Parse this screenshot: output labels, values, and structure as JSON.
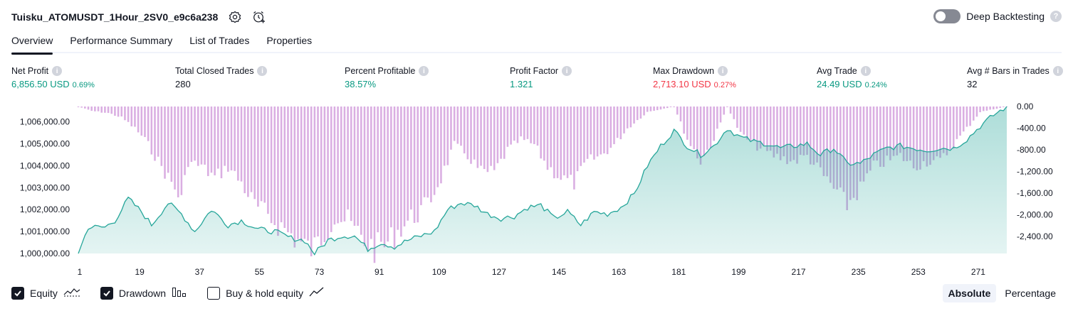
{
  "header": {
    "title": "Tuisku_ATOMUSDT_1Hour_2SV0_e9c6a238",
    "settings_icon": "gear-icon",
    "alert_icon": "alarm-clock-plus-icon"
  },
  "deep_backtesting": {
    "label": "Deep Backtesting",
    "enabled": false,
    "help_icon": "?"
  },
  "tabs": [
    {
      "label": "Overview",
      "active": true
    },
    {
      "label": "Performance Summary",
      "active": false
    },
    {
      "label": "List of Trades",
      "active": false
    },
    {
      "label": "Properties",
      "active": false
    }
  ],
  "stats": [
    {
      "label": "Net Profit",
      "value": "6,856.50 USD",
      "pct": "0.69%",
      "color": "#089981"
    },
    {
      "label": "Total Closed Trades",
      "value": "280",
      "pct": "",
      "color": "#131722"
    },
    {
      "label": "Percent Profitable",
      "value": "38.57%",
      "pct": "",
      "color": "#089981"
    },
    {
      "label": "Profit Factor",
      "value": "1.321",
      "pct": "",
      "color": "#089981"
    },
    {
      "label": "Max Drawdown",
      "value": "2,713.10 USD",
      "pct": "0.27%",
      "color": "#f23645"
    },
    {
      "label": "Avg Trade",
      "value": "24.49 USD",
      "pct": "0.24%",
      "color": "#089981"
    },
    {
      "label": "Avg # Bars in Trades",
      "value": "32",
      "pct": "",
      "color": "#131722"
    }
  ],
  "chart_data": {
    "type": "area",
    "x_ticks": [
      1,
      19,
      37,
      55,
      73,
      91,
      109,
      127,
      145,
      163,
      181,
      199,
      217,
      235,
      253,
      271
    ],
    "x_range": [
      1,
      280
    ],
    "y_left": {
      "ticks": [
        "1,000,000.00",
        "1,001,000.00",
        "1,002,000.00",
        "1,003,000.00",
        "1,004,000.00",
        "1,005,000.00",
        "1,006,000.00"
      ],
      "range": [
        1000000,
        1006700
      ]
    },
    "y_right": {
      "ticks": [
        "0.00",
        "-400.00",
        "-800.00",
        "-1,200.00",
        "-1,600.00",
        "-2,000.00",
        "-2,400.00"
      ],
      "range": [
        0,
        -2713.1
      ]
    },
    "series": [
      {
        "name": "Equity",
        "color": "#26a69a",
        "anchors": [
          [
            1,
            1000000
          ],
          [
            4,
            1001200
          ],
          [
            9,
            1001200
          ],
          [
            12,
            1001500
          ],
          [
            16,
            1002500
          ],
          [
            20,
            1001900
          ],
          [
            23,
            1001300
          ],
          [
            28,
            1002300
          ],
          [
            32,
            1001800
          ],
          [
            36,
            1001000
          ],
          [
            41,
            1002000
          ],
          [
            46,
            1001300
          ],
          [
            50,
            1001500
          ],
          [
            55,
            1001100
          ],
          [
            60,
            1001000
          ],
          [
            65,
            1000700
          ],
          [
            69,
            1000600
          ],
          [
            72,
            1000000
          ],
          [
            76,
            1000600
          ],
          [
            80,
            1000800
          ],
          [
            84,
            1000800
          ],
          [
            88,
            1000200
          ],
          [
            92,
            1000500
          ],
          [
            96,
            1000300
          ],
          [
            100,
            1000600
          ],
          [
            104,
            1000800
          ],
          [
            108,
            1001000
          ],
          [
            112,
            1002000
          ],
          [
            116,
            1002300
          ],
          [
            120,
            1002200
          ],
          [
            124,
            1001800
          ],
          [
            128,
            1001600
          ],
          [
            132,
            1001700
          ],
          [
            136,
            1002100
          ],
          [
            140,
            1002200
          ],
          [
            144,
            1001600
          ],
          [
            148,
            1001900
          ],
          [
            152,
            1001300
          ],
          [
            156,
            1001900
          ],
          [
            160,
            1001800
          ],
          [
            164,
            1002100
          ],
          [
            168,
            1002700
          ],
          [
            172,
            1004000
          ],
          [
            176,
            1004900
          ],
          [
            180,
            1005600
          ],
          [
            184,
            1004900
          ],
          [
            188,
            1004500
          ],
          [
            192,
            1004900
          ],
          [
            196,
            1005700
          ],
          [
            200,
            1005300
          ],
          [
            204,
            1005100
          ],
          [
            208,
            1005000
          ],
          [
            212,
            1004800
          ],
          [
            216,
            1004900
          ],
          [
            220,
            1005000
          ],
          [
            224,
            1004500
          ],
          [
            228,
            1004800
          ],
          [
            232,
            1004100
          ],
          [
            236,
            1004100
          ],
          [
            240,
            1004500
          ],
          [
            244,
            1004800
          ],
          [
            248,
            1004900
          ],
          [
            252,
            1004800
          ],
          [
            256,
            1004700
          ],
          [
            260,
            1004800
          ],
          [
            264,
            1004800
          ],
          [
            268,
            1005200
          ],
          [
            272,
            1005800
          ],
          [
            276,
            1006300
          ],
          [
            280,
            1006700
          ]
        ]
      },
      {
        "name": "Drawdown",
        "color": "#ce93d8",
        "anchors": [
          [
            1,
            0
          ],
          [
            5,
            -80
          ],
          [
            10,
            -120
          ],
          [
            14,
            -200
          ],
          [
            18,
            -400
          ],
          [
            21,
            -600
          ],
          [
            24,
            -900
          ],
          [
            27,
            -1200
          ],
          [
            30,
            -1500
          ],
          [
            32,
            -1700
          ],
          [
            34,
            -1000
          ],
          [
            38,
            -1100
          ],
          [
            42,
            -1300
          ],
          [
            46,
            -1100
          ],
          [
            50,
            -1400
          ],
          [
            54,
            -1800
          ],
          [
            58,
            -2000
          ],
          [
            62,
            -2200
          ],
          [
            66,
            -2400
          ],
          [
            70,
            -2600
          ],
          [
            72,
            -2600
          ],
          [
            75,
            -2300
          ],
          [
            78,
            -2000
          ],
          [
            82,
            -2100
          ],
          [
            86,
            -2400
          ],
          [
            90,
            -2600
          ],
          [
            94,
            -2500
          ],
          [
            98,
            -2200
          ],
          [
            102,
            -2000
          ],
          [
            106,
            -1800
          ],
          [
            110,
            -1300
          ],
          [
            114,
            -700
          ],
          [
            118,
            -900
          ],
          [
            122,
            -1200
          ],
          [
            126,
            -1200
          ],
          [
            130,
            -800
          ],
          [
            134,
            -600
          ],
          [
            138,
            -700
          ],
          [
            142,
            -1100
          ],
          [
            146,
            -1300
          ],
          [
            150,
            -1400
          ],
          [
            154,
            -1000
          ],
          [
            158,
            -900
          ],
          [
            162,
            -700
          ],
          [
            166,
            -400
          ],
          [
            172,
            -100
          ],
          [
            180,
            0
          ],
          [
            184,
            -600
          ],
          [
            188,
            -1000
          ],
          [
            192,
            -600
          ],
          [
            196,
            0
          ],
          [
            200,
            -500
          ],
          [
            204,
            -700
          ],
          [
            210,
            -900
          ],
          [
            216,
            -1000
          ],
          [
            220,
            -900
          ],
          [
            224,
            -1200
          ],
          [
            228,
            -1500
          ],
          [
            232,
            -1800
          ],
          [
            236,
            -1500
          ],
          [
            240,
            -1100
          ],
          [
            244,
            -1000
          ],
          [
            248,
            -900
          ],
          [
            252,
            -1100
          ],
          [
            256,
            -1000
          ],
          [
            260,
            -1000
          ],
          [
            264,
            -700
          ],
          [
            268,
            -400
          ],
          [
            272,
            -100
          ],
          [
            276,
            -50
          ],
          [
            280,
            0
          ]
        ]
      }
    ],
    "grid": false
  },
  "legend": [
    {
      "label": "Equity",
      "checked": true,
      "icon": "equity-line-icon"
    },
    {
      "label": "Drawdown",
      "checked": true,
      "icon": "drawdown-bars-icon"
    },
    {
      "label": "Buy & hold equity",
      "checked": false,
      "icon": "buy-hold-line-icon"
    }
  ],
  "modes": [
    {
      "label": "Absolute",
      "active": true
    },
    {
      "label": "Percentage",
      "active": false
    }
  ]
}
